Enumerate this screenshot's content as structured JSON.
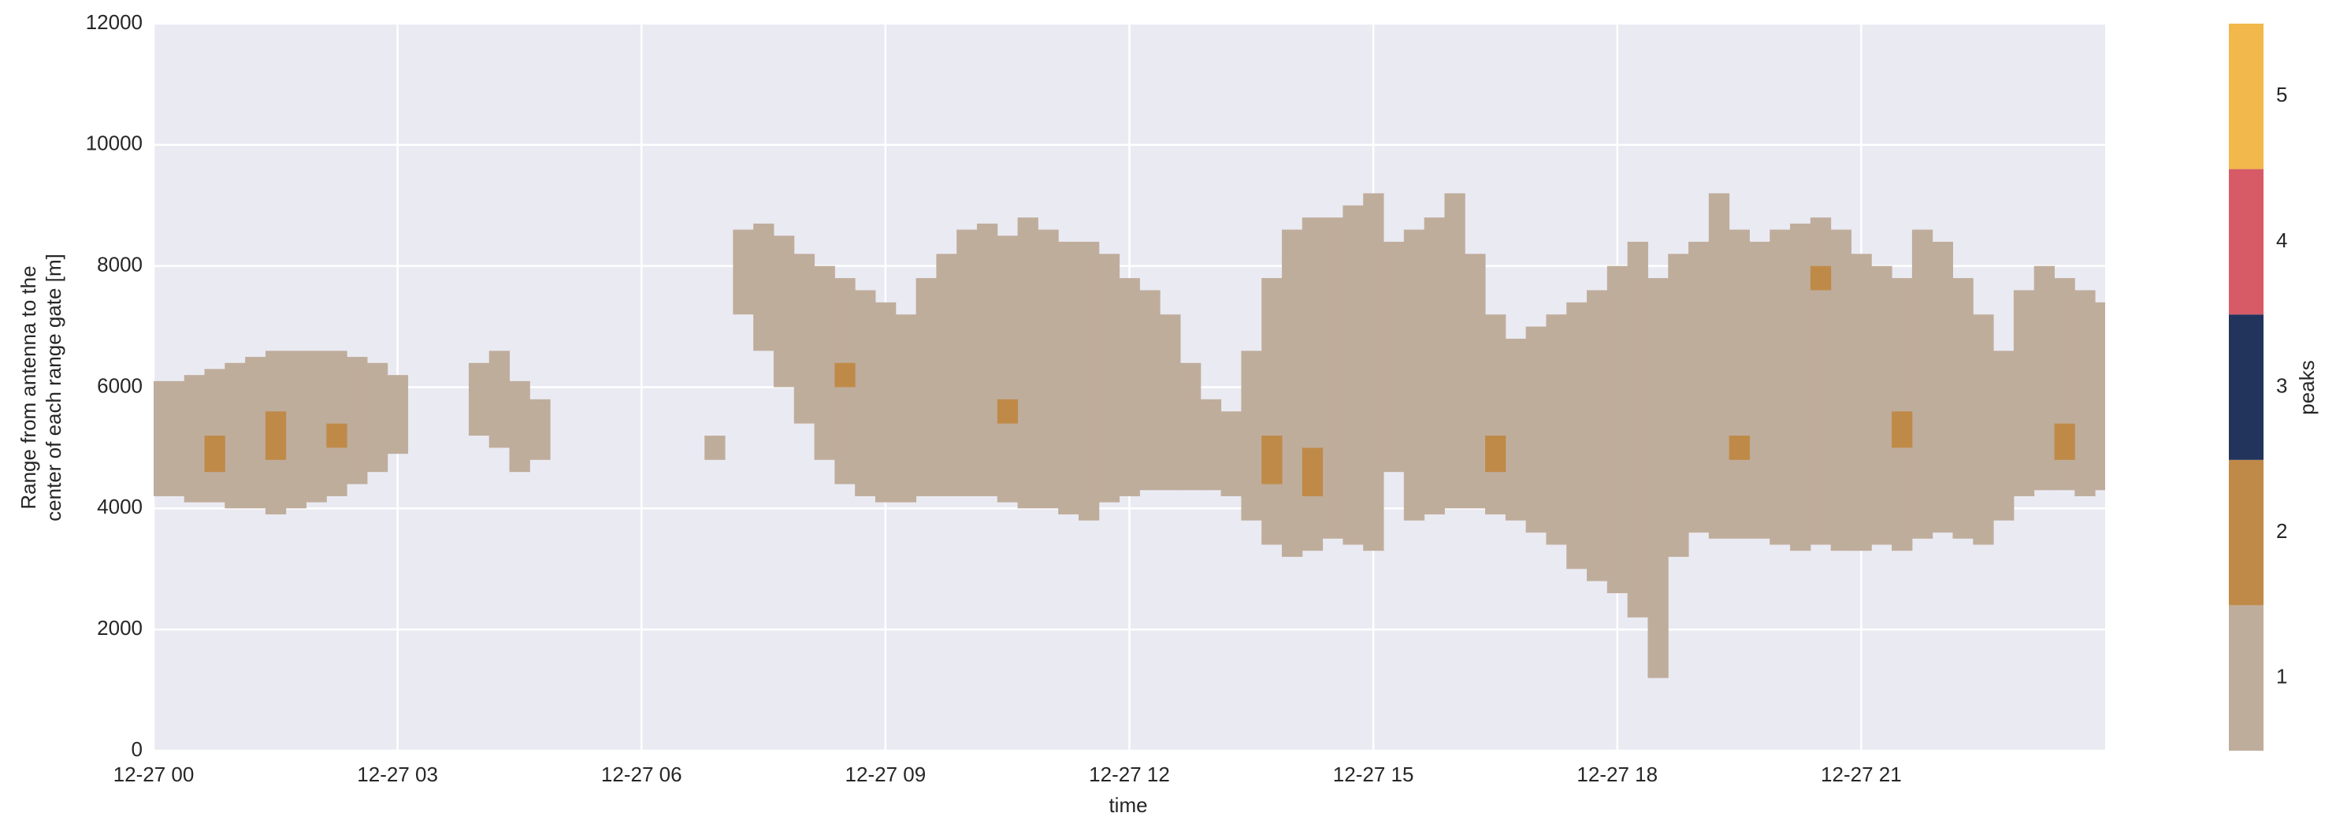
{
  "chart_data": {
    "type": "range-time",
    "xlabel": "time",
    "ylabel": [
      "Range from antenna to the",
      "center of each range gate [m]"
    ],
    "xlim": [
      0,
      24
    ],
    "xticks": [
      {
        "value": 0,
        "label": "12-27 00"
      },
      {
        "value": 3,
        "label": "12-27 03"
      },
      {
        "value": 6,
        "label": "12-27 06"
      },
      {
        "value": 9,
        "label": "12-27 09"
      },
      {
        "value": 12,
        "label": "12-27 12"
      },
      {
        "value": 15,
        "label": "12-27 15"
      },
      {
        "value": 18,
        "label": "12-27 18"
      },
      {
        "value": 21,
        "label": "12-27 21"
      }
    ],
    "ylim": [
      0,
      12000
    ],
    "yticks": [
      0,
      2000,
      4000,
      6000,
      8000,
      10000,
      12000
    ],
    "grid": true,
    "layers": [
      {
        "peaks": 1,
        "x": [
          0,
          0.25,
          0.5,
          0.75,
          1,
          1.25,
          1.5,
          1.75,
          2,
          2.25,
          2.5,
          2.75,
          3,
          4,
          4.25,
          4.5,
          4.75,
          6.9,
          7.25,
          7.5,
          7.75,
          8,
          8.25,
          8.5,
          8.75,
          9,
          9.25,
          9.5,
          9.75,
          10,
          10.25,
          10.5,
          10.75,
          11,
          11.25,
          11.5,
          11.75,
          12,
          12.25,
          12.5,
          12.75,
          13,
          13.25,
          13.5,
          13.75,
          14,
          14.25,
          14.5,
          14.75,
          15,
          15.25,
          15.5,
          15.75,
          16,
          16.25,
          16.5,
          16.75,
          17,
          17.25,
          17.5,
          17.75,
          18,
          18.25,
          18.5,
          18.75,
          19,
          19.25,
          19.5,
          19.75,
          20,
          20.25,
          20.5,
          20.75,
          21,
          21.25,
          21.5,
          21.75,
          22,
          22.25,
          22.5,
          22.75,
          23,
          23.25,
          23.5,
          23.75,
          24
        ],
        "base": [
          4200,
          4200,
          4100,
          4100,
          4000,
          4000,
          3900,
          4000,
          4100,
          4200,
          4400,
          4600,
          4900,
          5200,
          5000,
          4600,
          4800,
          4800,
          7200,
          6600,
          6000,
          5400,
          4800,
          4400,
          4200,
          4100,
          4100,
          4200,
          4200,
          4200,
          4200,
          4100,
          4000,
          4000,
          3900,
          3800,
          4100,
          4200,
          4300,
          4300,
          4300,
          4300,
          4200,
          3800,
          3400,
          3200,
          3300,
          3500,
          3400,
          3300,
          4600,
          3800,
          3900,
          4000,
          4000,
          3900,
          3800,
          3600,
          3400,
          3000,
          2800,
          2600,
          2200,
          1200,
          3200,
          3600,
          3500,
          3500,
          3500,
          3400,
          3300,
          3400,
          3300,
          3300,
          3400,
          3300,
          3500,
          3600,
          3500,
          3400,
          3800,
          4200,
          4300,
          4300,
          4200,
          4300
        ],
        "top": [
          6100,
          6100,
          6200,
          6300,
          6400,
          6500,
          6600,
          6600,
          6600,
          6600,
          6500,
          6400,
          6200,
          6400,
          6600,
          6100,
          5800,
          5200,
          8600,
          8700,
          8500,
          8200,
          8000,
          7800,
          7600,
          7400,
          7200,
          7800,
          8200,
          8600,
          8700,
          8500,
          8800,
          8600,
          8400,
          8400,
          8200,
          7800,
          7600,
          7200,
          6400,
          5800,
          5600,
          6600,
          7800,
          8600,
          8800,
          8800,
          9000,
          9200,
          8400,
          8600,
          8800,
          9200,
          8200,
          7200,
          6800,
          7000,
          7200,
          7400,
          7600,
          8000,
          8400,
          7800,
          8200,
          8400,
          9200,
          8600,
          8400,
          8600,
          8700,
          8800,
          8600,
          8200,
          8000,
          7800,
          8600,
          8400,
          7800,
          7200,
          6600,
          7600,
          8000,
          7800,
          7600,
          7400
        ]
      },
      {
        "peaks": 2,
        "x": [
          0.75,
          1.5,
          2.25,
          8.5,
          10.5,
          13.75,
          14.25,
          16.5,
          19.5,
          20.5,
          21.5,
          23.5
        ],
        "base": [
          4600,
          4800,
          5000,
          6000,
          5400,
          4400,
          4200,
          4600,
          4800,
          7600,
          5000,
          4800
        ],
        "top": [
          5200,
          5600,
          5400,
          6400,
          5800,
          5200,
          5000,
          5200,
          5200,
          8000,
          5600,
          5400
        ]
      }
    ],
    "colorbar": {
      "label": "peaks",
      "lim": [
        0.5,
        5.5
      ],
      "ticks": [
        1,
        2,
        3,
        4,
        5
      ],
      "colors": [
        "#bfad9c",
        "#bf8a48",
        "#22335c",
        "#d65b66",
        "#f2b84b"
      ]
    }
  }
}
